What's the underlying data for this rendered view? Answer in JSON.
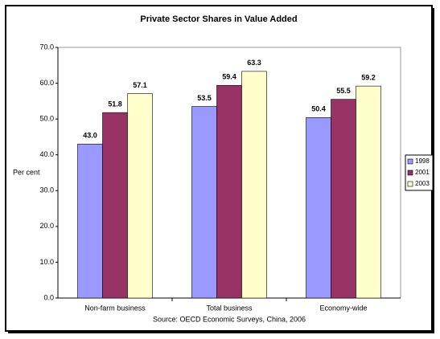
{
  "chart_data": {
    "type": "bar",
    "title": "Private Sector Shares in Value Added",
    "y_label": "Per cent",
    "source": "Source: OECD Economic Surveys, China, 2006",
    "categories": [
      "Non-farm business",
      "Total business",
      "Economy-wide"
    ],
    "series": [
      {
        "name": "1998",
        "color": "#9999ff",
        "values": [
          43.0,
          53.5,
          50.4
        ],
        "value_labels": [
          "43.0",
          "53.5",
          "50.4"
        ]
      },
      {
        "name": "2001",
        "color": "#993366",
        "values": [
          51.8,
          59.4,
          55.5
        ],
        "value_labels": [
          "51.8",
          "59.4",
          "55.5"
        ]
      },
      {
        "name": "2003",
        "color": "#ffffcc",
        "values": [
          57.1,
          63.3,
          59.2
        ],
        "value_labels": [
          "57.1",
          "63.3",
          "59.2"
        ]
      }
    ],
    "ylim": [
      0,
      70
    ],
    "yticks": [
      {
        "value": 0,
        "label": "0.0"
      },
      {
        "value": 10,
        "label": "10.0"
      },
      {
        "value": 20,
        "label": "20.0"
      },
      {
        "value": 30,
        "label": "30.0"
      },
      {
        "value": 40,
        "label": "40.0"
      },
      {
        "value": 50,
        "label": "50.0"
      },
      {
        "value": 60,
        "label": "60.0"
      },
      {
        "value": 70,
        "label": "70.0"
      }
    ],
    "grid": false,
    "legend": "right"
  }
}
